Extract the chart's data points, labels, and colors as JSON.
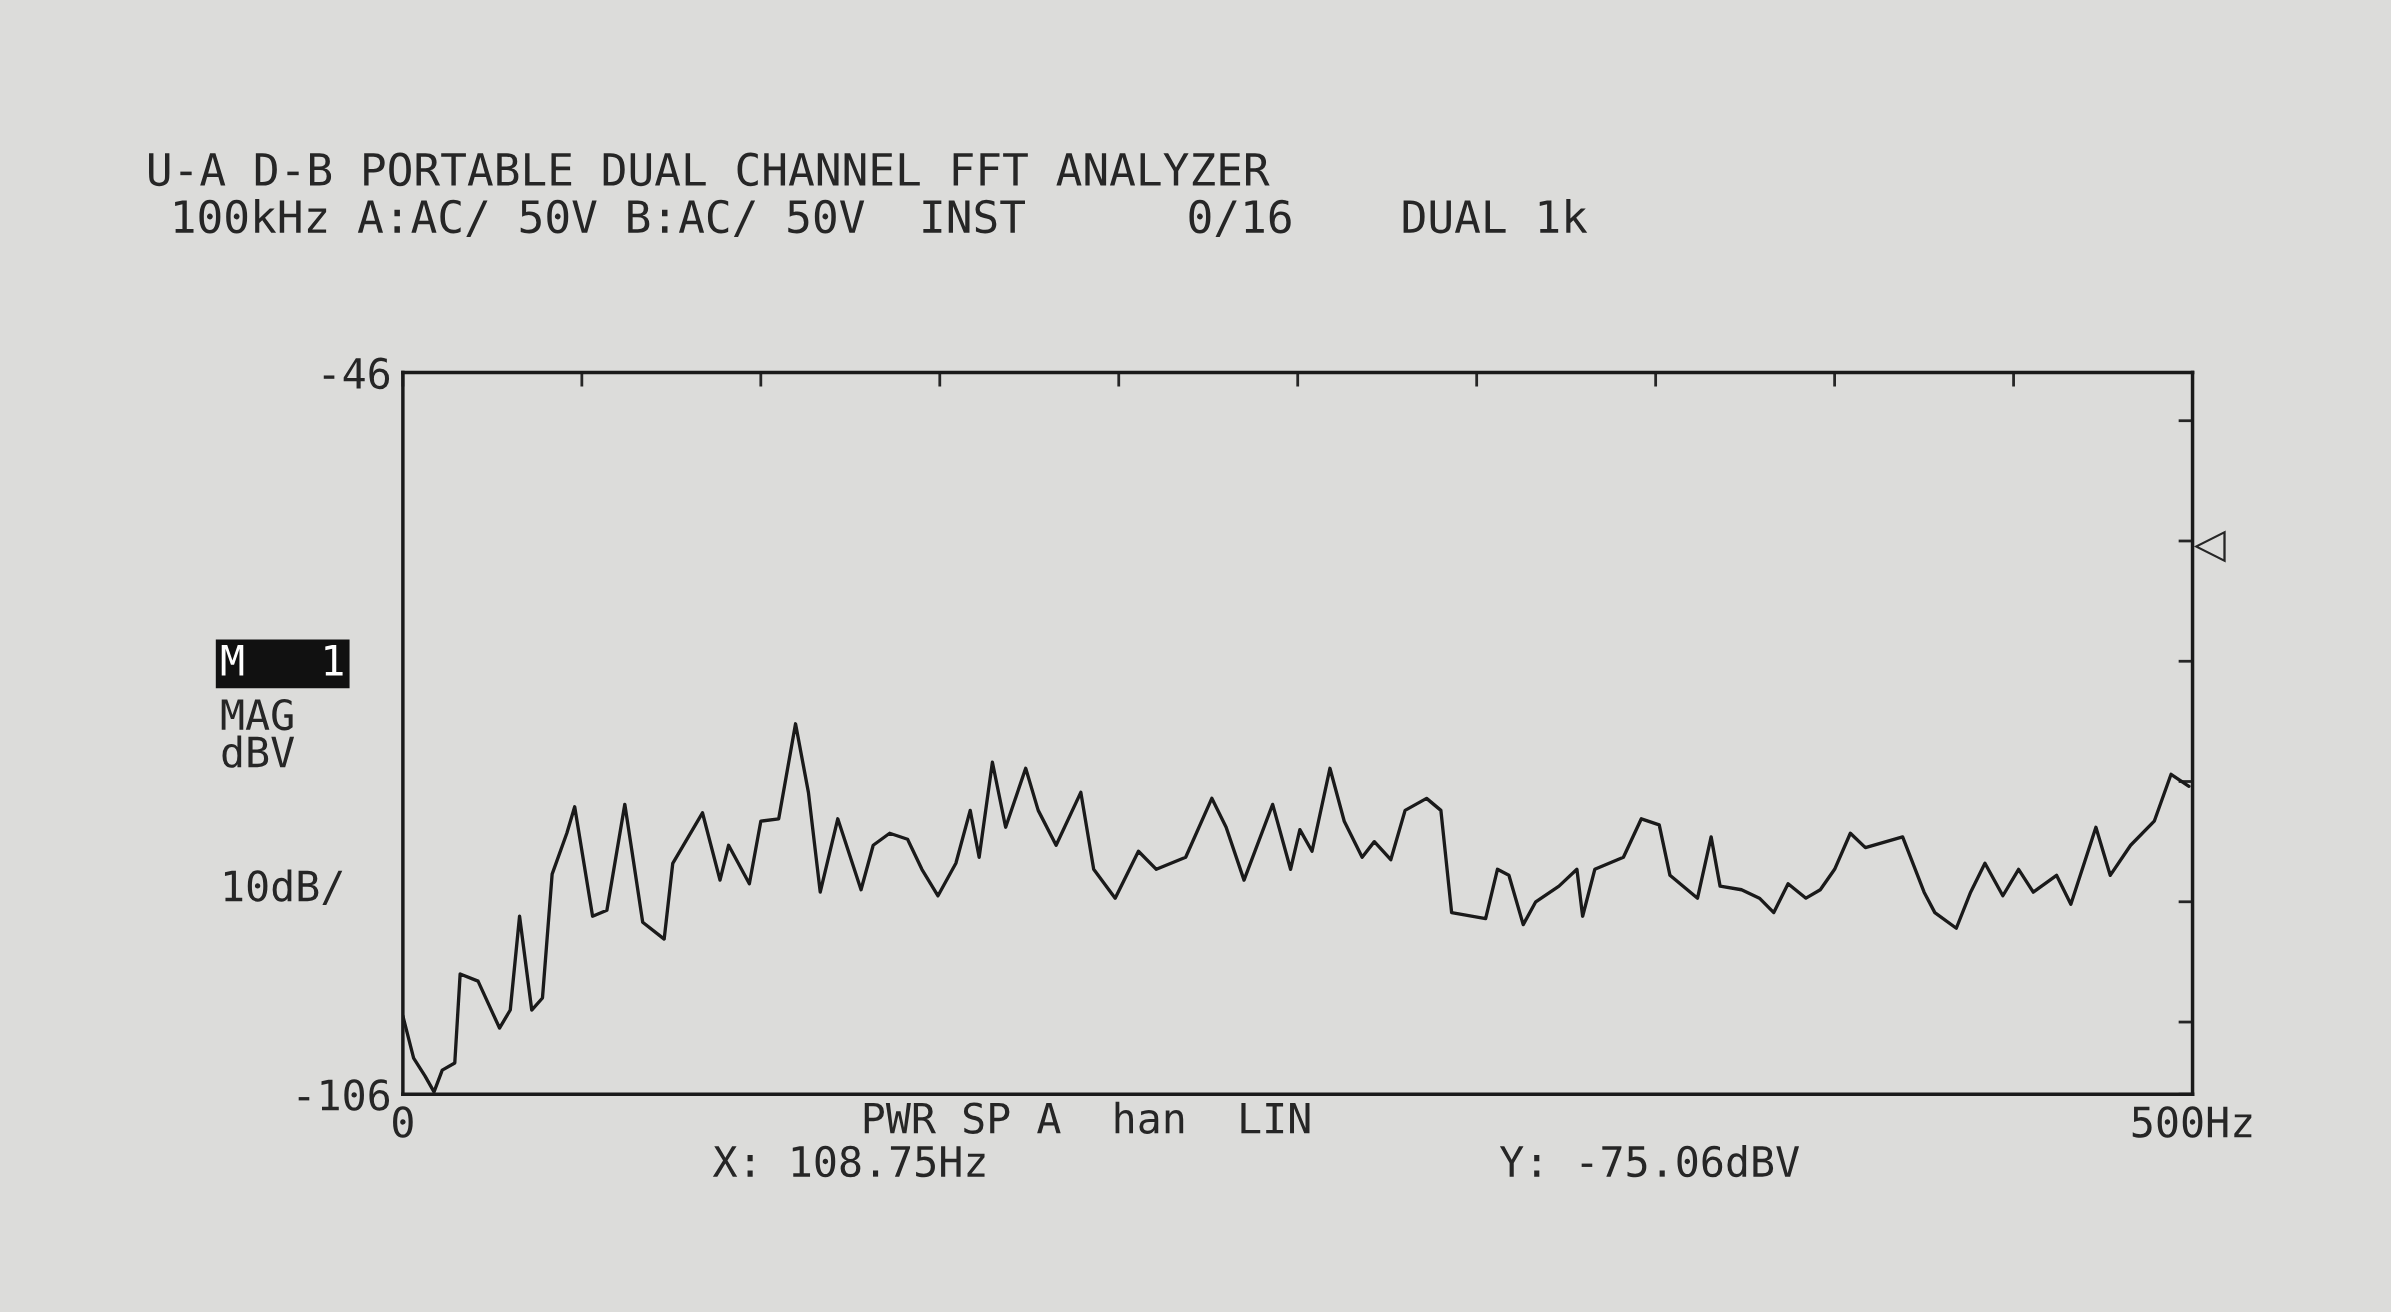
{
  "chart_data": {
    "type": "line",
    "title": "U-A D-B PORTABLE DUAL CHANNEL FFT ANALYZER",
    "subtitle": "100kHz A:AC/ 50V B:AC/ 50V  INST      0/16    DUAL 1k",
    "ylabel": "MAG\ndBV",
    "xlim": [
      0,
      500
    ],
    "xticks": [
      0,
      {
        "value": 50,
        "label": null
      },
      {
        "value": 100,
        "label": null
      },
      {
        "value": 150,
        "label": null
      },
      {
        "value": 200,
        "label": null
      },
      {
        "value": 250,
        "label": null
      },
      {
        "value": 300,
        "label": null
      },
      {
        "value": 350,
        "label": null
      },
      {
        "value": 400,
        "label": null
      },
      {
        "value": 450,
        "label": null
      },
      {
        "value": 500,
        "label": "500Hz"
      }
    ],
    "ylim": [
      -106,
      -46
    ],
    "yticks": [
      -46,
      {
        "value": -50,
        "label": null
      },
      {
        "value": -60,
        "label": null
      },
      {
        "value": -70,
        "label": null
      },
      {
        "value": -80,
        "label": null
      },
      {
        "value": -90,
        "label": null
      },
      {
        "value": -100,
        "label": null
      },
      -106
    ],
    "grid": false,
    "line_style": "solid",
    "marker": "none",
    "annotations": [
      "M   1",
      "10dB/",
      "PWR SP A  han  LIN",
      "X: 108.75Hz",
      "Y: -75.06dBV",
      "◁"
    ],
    "series": [
      {
        "color": "#1a1a1a",
        "x": [
          0,
          3,
          6.2,
          8.7,
          11,
          14.5,
          16,
          21,
          27,
          30,
          32.6,
          36,
          39,
          41.7,
          45.8,
          48,
          53,
          57,
          62,
          64,
          67,
          73,
          75.4,
          83.7,
          88.6,
          91,
          96.8,
          100,
          105,
          109.7,
          113.3,
          116.6,
          121.5,
          128,
          131.4,
          136,
          141,
          145,
          149.5,
          154.5,
          158.5,
          161,
          164.7,
          168.4,
          174,
          177.5,
          182.5,
          189.4,
          193,
          199,
          205.5,
          210.5,
          218.7,
          226,
          230,
          235,
          243,
          248,
          250.6,
          254,
          259,
          263,
          268,
          271.4,
          276,
          280,
          286,
          290,
          293,
          302.5,
          305.8,
          309,
          313,
          316.5,
          323,
          328,
          329.6,
          333,
          341,
          346,
          351,
          354,
          361.7,
          365.5,
          368,
          374,
          379,
          383,
          387,
          392,
          396,
          400,
          404.4,
          408.6,
          419,
          425,
          428,
          434,
          438,
          442,
          447,
          451.4,
          455.5,
          462,
          466,
          473,
          477,
          482.7,
          489.3,
          494,
          499
        ],
        "values": [
          -99.5,
          -103,
          -104.5,
          -105.8,
          -104,
          -103.4,
          -96,
          -96.6,
          -100.5,
          -99,
          -91.2,
          -99,
          -98,
          -87.7,
          -84.3,
          -82.1,
          -91.2,
          -90.7,
          -81.9,
          -85.8,
          -91.7,
          -93.1,
          -86.8,
          -82.6,
          -88.2,
          -85.3,
          -88.5,
          -83.3,
          -83.1,
          -75.2,
          -80.9,
          -89.2,
          -83.1,
          -89,
          -85.3,
          -84.3,
          -84.8,
          -87.3,
          -89.5,
          -86.8,
          -82.4,
          -86.3,
          -78.4,
          -83.8,
          -78.9,
          -82.4,
          -85.3,
          -80.9,
          -87.3,
          -89.7,
          -85.8,
          -87.3,
          -86.3,
          -81.4,
          -83.8,
          -88.2,
          -81.9,
          -87.3,
          -84,
          -85.8,
          -78.9,
          -83.3,
          -86.3,
          -85,
          -86.5,
          -82.4,
          -81.4,
          -82.4,
          -90.9,
          -91.4,
          -87.3,
          -87.8,
          -91.9,
          -90,
          -88.7,
          -87.3,
          -91.2,
          -87.3,
          -86.3,
          -83.1,
          -83.6,
          -87.8,
          -89.7,
          -84.6,
          -88.7,
          -89,
          -89.7,
          -90.9,
          -88.5,
          -89.7,
          -89,
          -87.3,
          -84.3,
          -85.5,
          -84.6,
          -89.2,
          -90.9,
          -92.2,
          -89.2,
          -86.8,
          -89.5,
          -87.3,
          -89.2,
          -87.8,
          -90.2,
          -83.8,
          -87.8,
          -85.3,
          -83.3,
          -79.4,
          -80.4
        ]
      }
    ]
  }
}
